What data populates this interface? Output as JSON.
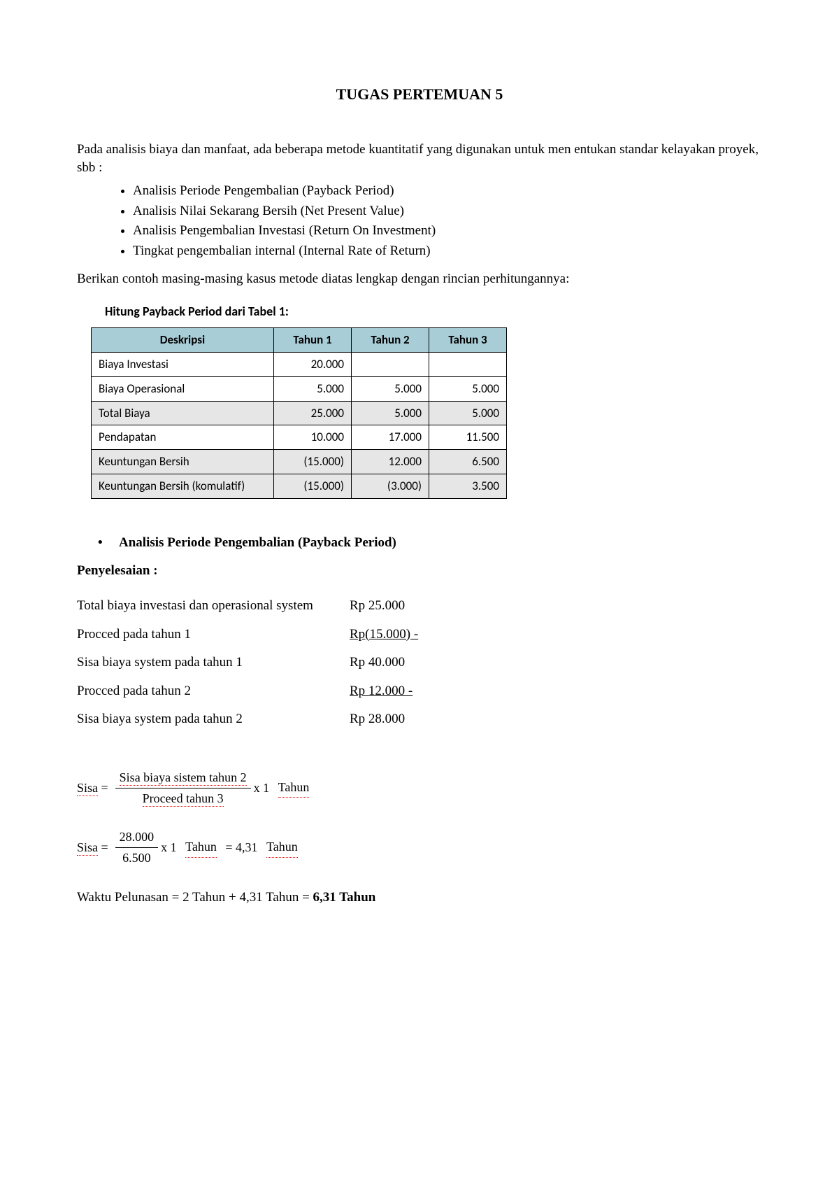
{
  "title": "TUGAS PERTEMUAN 5",
  "intro": "Pada analisis biaya dan manfaat, ada beberapa metode kuantitatif yang digunakan untuk men entukan standar kelayakan proyek, sbb :",
  "methods": [
    "Analisis Periode Pengembalian (Payback Period)",
    "Analisis Nilai Sekarang Bersih (Net Present Value)",
    "Analisis Pengembalian Investasi (Return On Investment)",
    "Tingkat pengembalian internal (Internal Rate of Return)"
  ],
  "instruction": "Berikan contoh masing-masing kasus metode diatas lengkap dengan rincian perhitungannya:",
  "table": {
    "caption": "Hitung Payback Period dari Tabel 1:",
    "header_bg": "#a9cdd7",
    "shaded_bg": "#e6e6e6",
    "columns": [
      "Deskripsi",
      "Tahun 1",
      "Tahun 2",
      "Tahun 3"
    ],
    "rows": [
      {
        "desc": "Biaya Investasi",
        "t1": "20.000",
        "t2": "",
        "t3": "",
        "shaded": false
      },
      {
        "desc": "Biaya Operasional",
        "t1": "5.000",
        "t2": "5.000",
        "t3": "5.000",
        "shaded": false
      },
      {
        "desc": "Total Biaya",
        "t1": "25.000",
        "t2": "5.000",
        "t3": "5.000",
        "shaded": true
      },
      {
        "desc": "Pendapatan",
        "t1": "10.000",
        "t2": "17.000",
        "t3": "11.500",
        "shaded": false
      },
      {
        "desc": "Keuntungan Bersih",
        "t1": "(15.000)",
        "t2": "12.000",
        "t3": "6.500",
        "shaded": true
      },
      {
        "desc": "Keuntungan Bersih (komulatif)",
        "t1": "(15.000)",
        "t2": "(3.000)",
        "t3": "3.500",
        "shaded": true
      }
    ]
  },
  "section1_title": "Analisis Periode Pengembalian (Payback Period)",
  "penyelesaian_label": "Penyelesaian :",
  "calc": [
    {
      "label": "Total biaya investasi dan operasional system",
      "value": "Rp 25.000",
      "underline": false
    },
    {
      "label": "Procced pada tahun 1",
      "value": "Rp(15.000) -",
      "underline": true
    },
    {
      "label": "Sisa biaya system pada tahun 1",
      "value": "Rp 40.000",
      "underline": false
    },
    {
      "label": "Procced pada tahun 2",
      "value": "Rp 12.000 -",
      "underline": true
    },
    {
      "label": "Sisa biaya system pada tahun 2",
      "value": "Rp 28.000",
      "underline": false
    }
  ],
  "formula1": {
    "lhs": "Sisa",
    "numerator": "Sisa biaya sistem tahun 2",
    "denominator": "Proceed tahun 3",
    "suffix_x": "x 1",
    "suffix_unit": "Tahun"
  },
  "formula2": {
    "lhs": "Sisa",
    "numerator": "28.000",
    "denominator": "6.500",
    "suffix_x": "x 1",
    "suffix_unit": "Tahun",
    "eq": "= 4,31",
    "eq_unit": "Tahun"
  },
  "final_prefix": "Waktu Pelunasan = 2 Tahun + 4,31 Tahun = ",
  "final_bold": "6,31 Tahun"
}
